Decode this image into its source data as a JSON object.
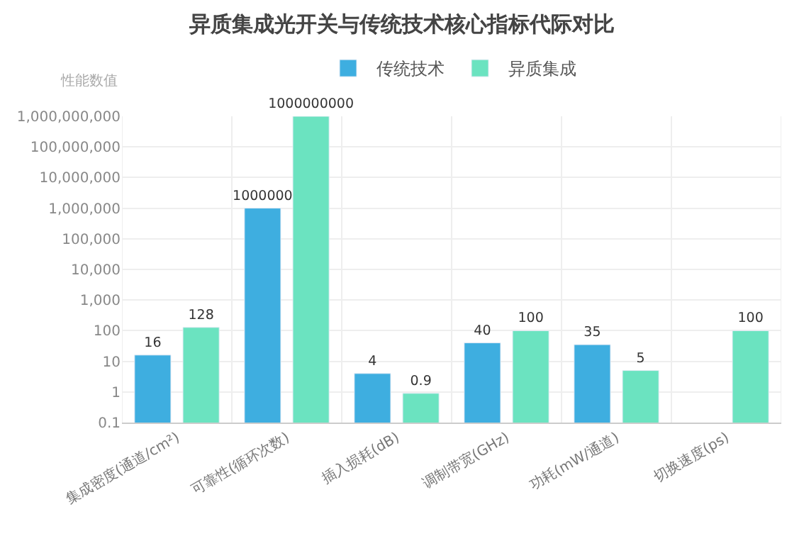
{
  "chart_data": {
    "type": "bar",
    "title": "异质集成光开关与传统技术核心指标代际对比",
    "ylabel": "性能数值",
    "categories": [
      "集成密度(通道/cm²)",
      "可靠性(循环次数)",
      "插入损耗(dB)",
      "调制带宽(GHz)",
      "功耗(mW/通道)",
      "切换速度(ps)"
    ],
    "series": [
      {
        "name": "传统技术",
        "color": "#3eaee0",
        "values": [
          16,
          1000000,
          4,
          40,
          35,
          null
        ]
      },
      {
        "name": "异质集成",
        "color": "#6be3c0",
        "values": [
          128,
          1000000000,
          0.9,
          100,
          5,
          100
        ]
      }
    ],
    "log": true,
    "ylim": [
      0.1,
      1000000000
    ],
    "yticks": [
      0.1,
      1,
      10,
      100,
      {
        "value": 1000,
        "label": "1,000"
      },
      {
        "value": 10000,
        "label": "10,000"
      },
      {
        "value": 100000,
        "label": "100,000"
      },
      {
        "value": 1000000,
        "label": "1,000,000"
      },
      {
        "value": 10000000,
        "label": "10,000,000"
      },
      {
        "value": 100000000,
        "label": "100,000,000"
      },
      {
        "value": 1000000000,
        "label": "1,000,000,000"
      }
    ],
    "grid": true,
    "legend": "top",
    "data_labels": true
  }
}
